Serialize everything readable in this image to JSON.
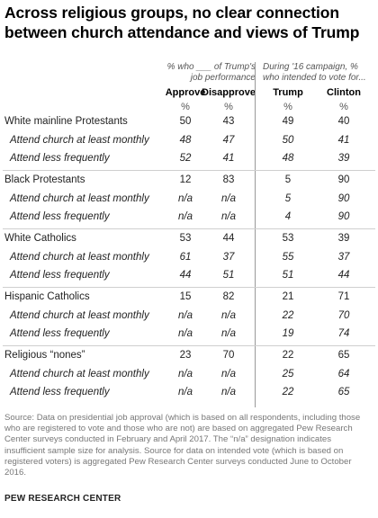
{
  "title": "Across religious groups, no clear connection between church attendance and views of Trump",
  "header": {
    "left_note": "% who ___ of Trump's job performance",
    "right_note": "During '16 campaign, % who intended to vote for...",
    "columns": [
      "Approve",
      "Disapprove",
      "Trump",
      "Clinton"
    ],
    "unit": "%"
  },
  "chart_data": {
    "type": "table",
    "columns": [
      "Approve",
      "Disapprove",
      "Trump",
      "Clinton"
    ],
    "rows": [
      {
        "label": "White mainline Protestants",
        "sub": false,
        "values": [
          "50",
          "43",
          "49",
          "40"
        ]
      },
      {
        "label": "Attend church at least monthly",
        "sub": true,
        "values": [
          "48",
          "47",
          "50",
          "41"
        ]
      },
      {
        "label": "Attend less frequently",
        "sub": true,
        "values": [
          "52",
          "41",
          "48",
          "39"
        ]
      },
      {
        "label": "Black Protestants",
        "sub": false,
        "values": [
          "12",
          "83",
          "5",
          "90"
        ]
      },
      {
        "label": "Attend church at least monthly",
        "sub": true,
        "values": [
          "n/a",
          "n/a",
          "5",
          "90"
        ]
      },
      {
        "label": "Attend less frequently",
        "sub": true,
        "values": [
          "n/a",
          "n/a",
          "4",
          "90"
        ]
      },
      {
        "label": "White Catholics",
        "sub": false,
        "values": [
          "53",
          "44",
          "53",
          "39"
        ]
      },
      {
        "label": "Attend church at least monthly",
        "sub": true,
        "values": [
          "61",
          "37",
          "55",
          "37"
        ]
      },
      {
        "label": "Attend less frequently",
        "sub": true,
        "values": [
          "44",
          "51",
          "51",
          "44"
        ]
      },
      {
        "label": "Hispanic Catholics",
        "sub": false,
        "values": [
          "15",
          "82",
          "21",
          "71"
        ]
      },
      {
        "label": "Attend church at least monthly",
        "sub": true,
        "values": [
          "n/a",
          "n/a",
          "22",
          "70"
        ]
      },
      {
        "label": "Attend less frequently",
        "sub": true,
        "values": [
          "n/a",
          "n/a",
          "19",
          "74"
        ]
      },
      {
        "label": "Religious “nones”",
        "sub": false,
        "values": [
          "23",
          "70",
          "22",
          "65"
        ]
      },
      {
        "label": "Attend church at least monthly",
        "sub": true,
        "values": [
          "n/a",
          "n/a",
          "25",
          "64"
        ]
      },
      {
        "label": "Attend less frequently",
        "sub": true,
        "values": [
          "n/a",
          "n/a",
          "22",
          "65"
        ]
      }
    ]
  },
  "source": "Source: Data on presidential job approval (which is based on all respondents, including those who are registered to vote and those who are not) are based on aggregated Pew Research Center surveys conducted in February and April 2017. The “n/a” designation indicates insufficient sample size for analysis. Source for data on intended vote (which is based on registered voters) is aggregated Pew Research Center surveys conducted June to October 2016.",
  "credit": "PEW RESEARCH CENTER"
}
